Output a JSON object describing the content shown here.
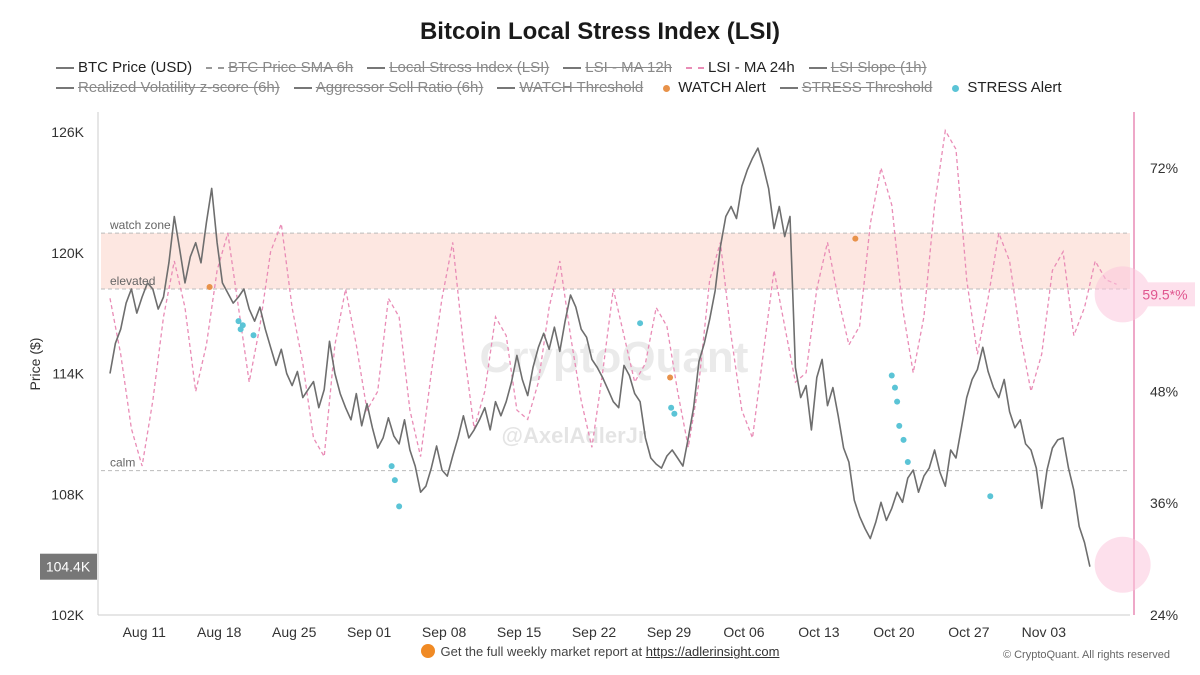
{
  "title": "Bitcoin Local Stress Index (LSI)",
  "legend": [
    {
      "label": "BTC Price (USD)",
      "style": "solid",
      "active": true
    },
    {
      "label": "BTC Price SMA 6h",
      "style": "dash",
      "active": false
    },
    {
      "label": "Local Stress Index (LSI)",
      "style": "solid",
      "active": false
    },
    {
      "label": "LSI - MA 12h",
      "style": "solid",
      "active": false
    },
    {
      "label": "LSI - MA 24h",
      "style": "dashpink",
      "active": true
    },
    {
      "label": "LSI Slope (1h)",
      "style": "solid",
      "active": false
    },
    {
      "label": "Realized Volatility z-score (6h)",
      "style": "solid",
      "active": false
    },
    {
      "label": "Aggressor Sell Ratio (6h)",
      "style": "solid",
      "active": false
    },
    {
      "label": "WATCH Threshold",
      "style": "solid",
      "active": false
    },
    {
      "label": "WATCH Alert",
      "style": "dot",
      "color": "#e8924a",
      "active": true
    },
    {
      "label": "STRESS Threshold",
      "style": "solid",
      "active": false
    },
    {
      "label": "STRESS Alert",
      "style": "dot",
      "color": "#5bc4d6",
      "active": true
    }
  ],
  "watermark": "CryptoQuant",
  "handle": "@AxelAdlerJr",
  "footer": {
    "text": "Get the full weekly market report at",
    "link": "https://adlerinsight.com"
  },
  "copyright": "© CryptoQuant. All rights reserved",
  "chart_data": {
    "type": "line",
    "ylabel": "Price ($)",
    "x_ticks": [
      "Aug 11",
      "Aug 18",
      "Aug 25",
      "Sep 01",
      "Sep 08",
      "Sep 15",
      "Sep 22",
      "Sep 29",
      "Oct 06",
      "Oct 13",
      "Oct 20",
      "Oct 27",
      "Nov 03"
    ],
    "left_axis": {
      "ticks": [
        "102K",
        "108K",
        "114K",
        "120K",
        "126K"
      ],
      "min": 102000,
      "max": 126000
    },
    "right_axis": {
      "ticks": [
        "24%",
        "36%",
        "48%",
        "72%"
      ],
      "min": 24,
      "max": 78
    },
    "current_price_label": "104.4K",
    "current_lsi_label": "59.5*%",
    "zones": [
      {
        "label": "watch zone",
        "lsi": 65
      },
      {
        "label": "elevated",
        "lsi": 59
      },
      {
        "label": "calm",
        "lsi": 39.5
      }
    ],
    "series": [
      {
        "name": "BTC Price (USD)",
        "color": "#6e6e6e",
        "day": [
          0,
          0.5,
          1,
          1.5,
          2,
          2.5,
          3,
          3.5,
          4,
          4.5,
          5,
          5.5,
          6,
          6.5,
          7,
          7.5,
          8,
          8.5,
          9,
          9.5,
          10,
          10.5,
          11,
          11.5,
          12,
          12.5,
          13,
          13.5,
          14,
          14.5,
          15,
          15.5,
          16,
          16.5,
          17,
          17.5,
          18,
          18.5,
          19,
          19.5,
          20,
          20.5,
          21,
          21.5,
          22,
          22.5,
          23,
          23.5,
          24,
          24.5,
          25,
          25.5,
          26,
          26.5,
          27,
          27.5,
          28,
          28.5,
          29,
          29.5,
          30,
          30.5,
          31,
          31.5,
          32,
          32.5,
          33,
          33.5,
          34,
          34.5,
          35,
          35.5,
          36,
          36.5,
          37,
          37.5,
          38,
          38.5,
          39,
          39.5,
          40,
          40.5,
          41,
          41.5,
          42,
          42.5,
          43,
          43.5,
          44,
          44.5,
          45,
          45.5,
          46,
          46.5,
          47,
          47.5,
          48,
          48.5,
          49,
          49.5,
          50,
          50.5,
          51,
          51.5,
          52,
          52.5,
          53,
          53.5,
          54,
          54.5,
          55,
          55.5,
          56,
          56.5,
          57,
          57.5,
          58,
          58.5,
          59,
          59.5,
          60,
          60.5,
          61,
          61.5,
          62,
          62.5,
          63,
          63.5,
          64,
          64.5,
          65,
          65.5,
          66,
          66.5,
          67,
          67.5,
          68,
          68.5,
          69,
          69.5,
          70,
          70.5,
          71,
          71.5,
          72,
          72.5,
          73,
          73.5,
          74,
          74.5,
          75,
          75.5,
          76,
          76.5,
          77,
          77.5,
          78,
          78.5,
          79,
          79.5,
          80,
          80.5,
          81,
          81.5,
          82,
          82.5,
          83,
          83.5,
          84,
          84.5,
          85,
          85.5,
          86,
          86.5,
          87,
          87.5,
          88,
          88.5,
          89,
          89.5,
          90,
          90.5,
          91,
          91.5,
          92,
          92.5,
          93,
          93.5,
          94
        ],
        "values": [
          114000,
          115500,
          116200,
          117500,
          118200,
          117000,
          117800,
          118500,
          118200,
          117200,
          117800,
          119500,
          121800,
          120200,
          118500,
          119800,
          120500,
          119500,
          121500,
          123200,
          120500,
          118500,
          118000,
          117500,
          117800,
          118200,
          117200,
          116600,
          117300,
          116200,
          115300,
          114400,
          115200,
          114000,
          113400,
          114100,
          112800,
          113200,
          113600,
          112300,
          113200,
          115600,
          114000,
          113000,
          112300,
          111700,
          113000,
          111400,
          112500,
          111300,
          110300,
          110800,
          111800,
          110900,
          110500,
          111700,
          110200,
          109400,
          108100,
          108400,
          109300,
          110400,
          109200,
          108900,
          109900,
          110800,
          111900,
          110800,
          111200,
          111700,
          112300,
          111200,
          112600,
          111900,
          112600,
          113600,
          114900,
          113700,
          112900,
          114300,
          115300,
          116000,
          115200,
          116300,
          115100,
          116600,
          117900,
          117300,
          116200,
          115800,
          114700,
          114300,
          113800,
          113200,
          112600,
          112300,
          114400,
          113900,
          113000,
          112600,
          110800,
          109800,
          109500,
          109300,
          109900,
          110200,
          109800,
          109400,
          110800,
          112300,
          114600,
          115500,
          116700,
          118100,
          120300,
          121800,
          122300,
          121700,
          123300,
          124100,
          124700,
          125200,
          124300,
          123200,
          121200,
          122300,
          120800,
          121800,
          114300,
          112800,
          113400,
          111200,
          113800,
          114700,
          112400,
          113300,
          111900,
          110300,
          109600,
          107700,
          106900,
          106300,
          105800,
          106600,
          107600,
          106700,
          107300,
          108100,
          107600,
          108800,
          109200,
          108100,
          108900,
          109300,
          110200,
          109100,
          108400,
          110200,
          109800,
          111300,
          112800,
          113700,
          114200,
          115300,
          114100,
          113300,
          112800,
          113700,
          112100,
          111300,
          111700,
          110500,
          110200,
          109300,
          107300,
          109200,
          110300,
          110700,
          110800,
          109300,
          108200,
          106400,
          105600,
          104400
        ],
        "point_days": [],
        "range": []
      },
      {
        "name": "LSI - MA 24h",
        "color": "#e98cb6",
        "day": [
          0,
          1,
          2,
          3,
          4,
          5,
          6,
          7,
          8,
          9,
          10,
          11,
          12,
          13,
          14,
          15,
          16,
          17,
          18,
          19,
          20,
          21,
          22,
          23,
          24,
          25,
          26,
          27,
          28,
          29,
          30,
          31,
          32,
          33,
          34,
          35,
          36,
          37,
          38,
          39,
          40,
          41,
          42,
          43,
          44,
          45,
          46,
          47,
          48,
          49,
          50,
          51,
          52,
          53,
          54,
          55,
          56,
          57,
          58,
          59,
          60,
          61,
          62,
          63,
          64,
          65,
          66,
          67,
          68,
          69,
          70,
          71,
          72,
          73,
          74,
          75,
          76,
          77,
          78,
          79,
          80,
          81,
          82,
          83,
          84,
          85,
          86,
          87,
          88,
          89,
          90,
          91,
          92,
          93,
          94
        ],
        "values": [
          58,
          52,
          44,
          40,
          47,
          56,
          62,
          57,
          48,
          53,
          61,
          65,
          57,
          49,
          55,
          63,
          66,
          57,
          51,
          43,
          41,
          53,
          59,
          53,
          46,
          48,
          58,
          56,
          46,
          41,
          50,
          58,
          64,
          53,
          44,
          48,
          56,
          54,
          46,
          45,
          49,
          57,
          62,
          54,
          47,
          42,
          50,
          59,
          54,
          49,
          51,
          57,
          55,
          48,
          42,
          49,
          60,
          64,
          54,
          46,
          43,
          52,
          61,
          55,
          49,
          50,
          59,
          64,
          58,
          53,
          55,
          66,
          72,
          68,
          57,
          50,
          56,
          68,
          76,
          74,
          60,
          52,
          58,
          65,
          62,
          54,
          48,
          52,
          61,
          63,
          54,
          57,
          62,
          60,
          59.5
        ]
      }
    ],
    "watch_alerts": [
      {
        "day": 9.3,
        "value": 118300
      },
      {
        "day": 52.3,
        "value": 113800
      },
      {
        "day": 69.6,
        "value": 120700
      }
    ],
    "stress_alerts": [
      {
        "day": 12.0,
        "value": 116600
      },
      {
        "day": 12.2,
        "value": 116200
      },
      {
        "day": 12.4,
        "value": 116400
      },
      {
        "day": 13.4,
        "value": 115900
      },
      {
        "day": 26.3,
        "value": 109400
      },
      {
        "day": 26.6,
        "value": 108700
      },
      {
        "day": 27.0,
        "value": 107400
      },
      {
        "day": 49.5,
        "value": 116500
      },
      {
        "day": 52.4,
        "value": 112300
      },
      {
        "day": 52.7,
        "value": 112000
      },
      {
        "day": 73.0,
        "value": 113900
      },
      {
        "day": 73.3,
        "value": 113300
      },
      {
        "day": 73.5,
        "value": 112600
      },
      {
        "day": 73.7,
        "value": 111400
      },
      {
        "day": 74.1,
        "value": 110700
      },
      {
        "day": 74.5,
        "value": 109600
      },
      {
        "day": 82.2,
        "value": 107900
      }
    ]
  }
}
